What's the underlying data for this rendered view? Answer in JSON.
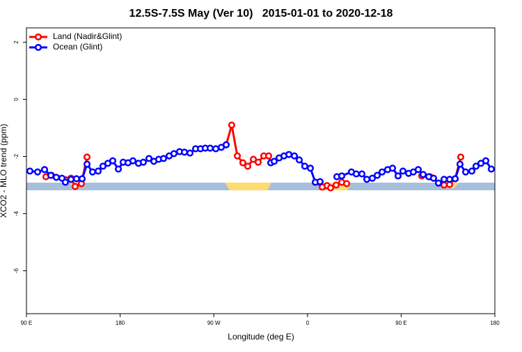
{
  "chart_data": {
    "type": "line",
    "title": "12.5S-7.5S May (Ver 10)   2015-01-01 to 2020-12-18",
    "xlabel": "Longitude (deg E)",
    "ylabel": "XCO2 - MLO trend (ppm)",
    "xlim": [
      90,
      540
    ],
    "ylim": [
      -7.5,
      2.5
    ],
    "xticks": [
      {
        "value": 90,
        "label": "90 E"
      },
      180,
      {
        "value": 270,
        "label": "90 W"
      },
      {
        "value": 360,
        "label": "0"
      },
      {
        "value": 450,
        "label": "90 E"
      },
      {
        "value": 540,
        "label": "180"
      }
    ],
    "yticks": [
      -6,
      -4,
      -2,
      0,
      2
    ],
    "legend": "topleft",
    "series": [
      {
        "name": "Land (Nadir&Glint)",
        "color": "#ff0000",
        "x": [
          108.7,
          114.1,
          132.8,
          136.8,
          142.8,
          148.2,
          null,
          281.9,
          287.2,
          292.6,
          297.9,
          302.6,
          308.0,
          312.6,
          318.0,
          322.7,
          324.7,
          null,
          367.5,
          374.2,
          378.8,
          382.2,
          387.5,
          392.9,
          397.6,
          null,
          469.8,
          477.8,
          491.2,
          496.5,
          501.9,
          507.2
        ],
        "values": [
          -2.71,
          -2.66,
          -2.76,
          -3.05,
          -2.95,
          -2.02,
          null,
          -1.59,
          -0.9,
          -1.98,
          -2.22,
          -2.34,
          -2.1,
          -2.2,
          -1.98,
          -1.98,
          -2.22,
          null,
          -2.9,
          -3.07,
          -3.02,
          -3.1,
          -3.0,
          -2.9,
          -2.95,
          null,
          -2.68,
          -2.71,
          -3.0,
          -2.98,
          -2.78,
          -2.02
        ]
      },
      {
        "name": "Ocean (Glint)",
        "color": "#0000ff",
        "x": [
          93.3,
          100.7,
          107.4,
          113.4,
          118.7,
          124.1,
          127.4,
          132.8,
          138.1,
          143.5,
          148.2,
          153.5,
          158.9,
          163.5,
          168.2,
          172.9,
          178.3,
          182.9,
          187.6,
          192.3,
          197.6,
          202.3,
          207.7,
          212.4,
          217.0,
          221.7,
          227.1,
          231.7,
          237.1,
          241.8,
          247.1,
          252.5,
          257.2,
          261.8,
          266.5,
          271.9,
          277.2,
          281.9,
          null,
          324.7,
          328.0,
          332.7,
          337.4,
          342.1,
          347.4,
          352.1,
          357.4,
          362.8,
          367.5,
          372.1,
          null,
          388.2,
          392.9,
          402.2,
          406.9,
          412.3,
          417.0,
          422.3,
          427.0,
          431.7,
          437.0,
          441.7,
          447.0,
          451.7,
          457.1,
          461.7,
          466.4,
          471.1,
          476.5,
          481.1,
          485.8,
          491.2,
          496.5,
          501.9,
          506.5,
          511.9,
          517.9,
          521.9,
          526.6,
          531.3,
          536.6
        ],
        "values": [
          -2.51,
          -2.54,
          -2.46,
          -2.66,
          -2.73,
          -2.76,
          -2.9,
          -2.8,
          -2.78,
          -2.78,
          -2.27,
          -2.54,
          -2.51,
          -2.34,
          -2.24,
          -2.15,
          -2.44,
          -2.2,
          -2.22,
          -2.15,
          -2.24,
          -2.2,
          -2.07,
          -2.17,
          -2.1,
          -2.07,
          -1.98,
          -1.9,
          -1.83,
          -1.85,
          -1.88,
          -1.73,
          -1.73,
          -1.71,
          -1.71,
          -1.73,
          -1.68,
          -1.59,
          null,
          -2.22,
          -2.17,
          -2.05,
          -1.98,
          -1.93,
          -1.98,
          -2.12,
          -2.34,
          -2.41,
          -2.9,
          -2.88,
          null,
          -2.71,
          -2.68,
          -2.54,
          -2.61,
          -2.61,
          -2.8,
          -2.76,
          -2.66,
          -2.54,
          -2.46,
          -2.41,
          -2.68,
          -2.51,
          -2.59,
          -2.54,
          -2.46,
          -2.63,
          -2.71,
          -2.76,
          -2.93,
          -2.8,
          -2.8,
          -2.78,
          -2.27,
          -2.54,
          -2.51,
          -2.34,
          -2.24,
          -2.15,
          -2.44
        ]
      }
    ]
  }
}
